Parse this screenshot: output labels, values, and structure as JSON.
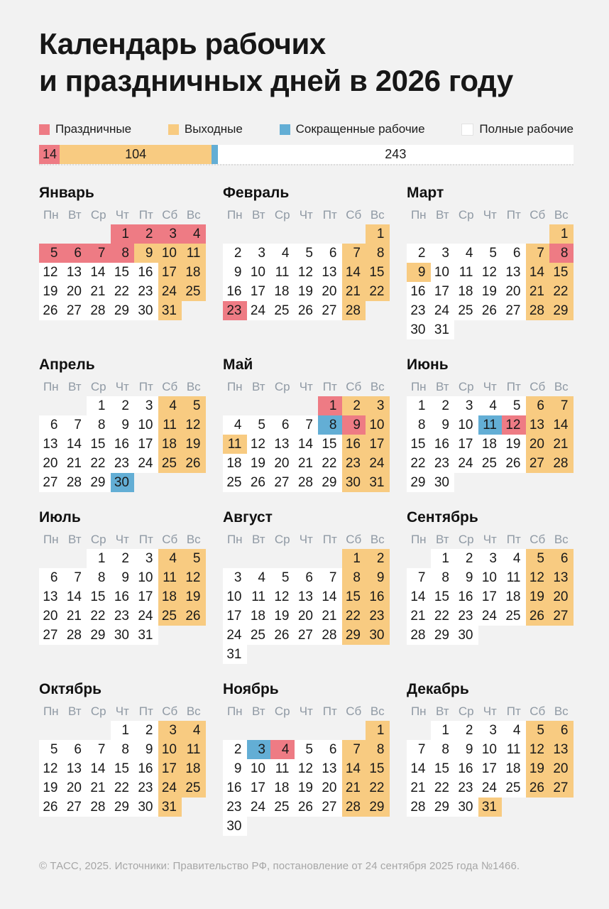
{
  "title": {
    "line1": "Календарь рабочих",
    "line2": "и праздничных дней в 2026 году"
  },
  "legend": {
    "items": [
      {
        "type": "h",
        "label": "Праздничные",
        "color": "#ee7b84"
      },
      {
        "type": "w",
        "label": "Выходные",
        "color": "#f8cb81"
      },
      {
        "type": "s",
        "label": "Сокращенные рабочие",
        "color": "#63aed5"
      },
      {
        "type": "r",
        "label": "Полные рабочие",
        "color": "#ffffff"
      }
    ]
  },
  "chart_data": {
    "type": "bar",
    "title": "Календарь рабочих и праздничных дней в 2026 году",
    "categories": [
      "Праздничные",
      "Выходные",
      "Сокращенные рабочие",
      "Полные рабочие"
    ],
    "values": [
      14,
      104,
      4,
      243
    ],
    "total": 365,
    "colors": [
      "#ee7b84",
      "#f8cb81",
      "#63aed5",
      "#ffffff"
    ],
    "legend_position": "top"
  },
  "weekday_headers": [
    "Пн",
    "Вт",
    "Ср",
    "Чт",
    "Пт",
    "Сб",
    "Вс"
  ],
  "day_type_names": {
    "h": "holiday",
    "w": "dayoff",
    "s": "short-workday",
    "r": "workday",
    "e": "empty"
  },
  "months": [
    {
      "name": "Январь",
      "weeks": [
        [
          "",
          "",
          "",
          "1h",
          "2h",
          "3h",
          "4h"
        ],
        [
          "5h",
          "6h",
          "7h",
          "8h",
          "9w",
          "10w",
          "11w"
        ],
        [
          "12r",
          "13r",
          "14r",
          "15r",
          "16r",
          "17w",
          "18w"
        ],
        [
          "19r",
          "20r",
          "21r",
          "22r",
          "23r",
          "24w",
          "25w"
        ],
        [
          "26r",
          "27r",
          "28r",
          "29r",
          "30r",
          "31w",
          ""
        ]
      ]
    },
    {
      "name": "Февраль",
      "weeks": [
        [
          "",
          "",
          "",
          "",
          "",
          "",
          "1w"
        ],
        [
          "2r",
          "3r",
          "4r",
          "5r",
          "6r",
          "7w",
          "8w"
        ],
        [
          "9r",
          "10r",
          "11r",
          "12r",
          "13r",
          "14w",
          "15w"
        ],
        [
          "16r",
          "17r",
          "18r",
          "19r",
          "20r",
          "21w",
          "22w"
        ],
        [
          "23h",
          "24r",
          "25r",
          "26r",
          "27r",
          "28w",
          ""
        ]
      ]
    },
    {
      "name": "Март",
      "weeks": [
        [
          "",
          "",
          "",
          "",
          "",
          "",
          "1w"
        ],
        [
          "2r",
          "3r",
          "4r",
          "5r",
          "6r",
          "7w",
          "8h"
        ],
        [
          "9w",
          "10r",
          "11r",
          "12r",
          "13r",
          "14w",
          "15w"
        ],
        [
          "16r",
          "17r",
          "18r",
          "19r",
          "20r",
          "21w",
          "22w"
        ],
        [
          "23r",
          "24r",
          "25r",
          "26r",
          "27r",
          "28w",
          "29w"
        ],
        [
          "30r",
          "31r",
          "",
          "",
          "",
          "",
          ""
        ]
      ]
    },
    {
      "name": "Апрель",
      "weeks": [
        [
          "",
          "",
          "1r",
          "2r",
          "3r",
          "4w",
          "5w"
        ],
        [
          "6r",
          "7r",
          "8r",
          "9r",
          "10r",
          "11w",
          "12w"
        ],
        [
          "13r",
          "14r",
          "15r",
          "16r",
          "17r",
          "18w",
          "19w"
        ],
        [
          "20r",
          "21r",
          "22r",
          "23r",
          "24r",
          "25w",
          "26w"
        ],
        [
          "27r",
          "28r",
          "29r",
          "30s",
          "",
          "",
          ""
        ]
      ]
    },
    {
      "name": "Май",
      "weeks": [
        [
          "",
          "",
          "",
          "",
          "1h",
          "2w",
          "3w"
        ],
        [
          "4r",
          "5r",
          "6r",
          "7r",
          "8s",
          "9h",
          "10w"
        ],
        [
          "11w",
          "12r",
          "13r",
          "14r",
          "15r",
          "16w",
          "17w"
        ],
        [
          "18r",
          "19r",
          "20r",
          "21r",
          "22r",
          "23w",
          "24w"
        ],
        [
          "25r",
          "26r",
          "27r",
          "28r",
          "29r",
          "30w",
          "31w"
        ]
      ]
    },
    {
      "name": "Июнь",
      "weeks": [
        [
          "1r",
          "2r",
          "3r",
          "4r",
          "5r",
          "6w",
          "7w"
        ],
        [
          "8r",
          "9r",
          "10r",
          "11s",
          "12h",
          "13w",
          "14w"
        ],
        [
          "15r",
          "16r",
          "17r",
          "18r",
          "19r",
          "20w",
          "21w"
        ],
        [
          "22r",
          "23r",
          "24r",
          "25r",
          "26r",
          "27w",
          "28w"
        ],
        [
          "29r",
          "30r",
          "",
          "",
          "",
          "",
          ""
        ]
      ]
    },
    {
      "name": "Июль",
      "weeks": [
        [
          "",
          "",
          "1r",
          "2r",
          "3r",
          "4w",
          "5w"
        ],
        [
          "6r",
          "7r",
          "8r",
          "9r",
          "10r",
          "11w",
          "12w"
        ],
        [
          "13r",
          "14r",
          "15r",
          "16r",
          "17r",
          "18w",
          "19w"
        ],
        [
          "20r",
          "21r",
          "22r",
          "23r",
          "24r",
          "25w",
          "26w"
        ],
        [
          "27r",
          "28r",
          "29r",
          "30r",
          "31r",
          "",
          ""
        ]
      ]
    },
    {
      "name": "Август",
      "weeks": [
        [
          "",
          "",
          "",
          "",
          "",
          "1w",
          "2w"
        ],
        [
          "3r",
          "4r",
          "5r",
          "6r",
          "7r",
          "8w",
          "9w"
        ],
        [
          "10r",
          "11r",
          "12r",
          "13r",
          "14r",
          "15w",
          "16w"
        ],
        [
          "17r",
          "18r",
          "19r",
          "20r",
          "21r",
          "22w",
          "23w"
        ],
        [
          "24r",
          "25r",
          "26r",
          "27r",
          "28r",
          "29w",
          "30w"
        ],
        [
          "31r",
          "",
          "",
          "",
          "",
          "",
          ""
        ]
      ]
    },
    {
      "name": "Сентябрь",
      "weeks": [
        [
          "",
          "1r",
          "2r",
          "3r",
          "4r",
          "5w",
          "6w"
        ],
        [
          "7r",
          "8r",
          "9r",
          "10r",
          "11r",
          "12w",
          "13w"
        ],
        [
          "14r",
          "15r",
          "16r",
          "17r",
          "18r",
          "19w",
          "20w"
        ],
        [
          "21r",
          "22r",
          "23r",
          "24r",
          "25r",
          "26w",
          "27w"
        ],
        [
          "28r",
          "29r",
          "30r",
          "",
          "",
          "",
          ""
        ]
      ]
    },
    {
      "name": "Октябрь",
      "weeks": [
        [
          "",
          "",
          "",
          "1r",
          "2r",
          "3w",
          "4w"
        ],
        [
          "5r",
          "6r",
          "7r",
          "8r",
          "9r",
          "10w",
          "11w"
        ],
        [
          "12r",
          "13r",
          "14r",
          "15r",
          "16r",
          "17w",
          "18w"
        ],
        [
          "19r",
          "20r",
          "21r",
          "22r",
          "23r",
          "24w",
          "25w"
        ],
        [
          "26r",
          "27r",
          "28r",
          "29r",
          "30r",
          "31w",
          ""
        ]
      ]
    },
    {
      "name": "Ноябрь",
      "weeks": [
        [
          "",
          "",
          "",
          "",
          "",
          "",
          "1w"
        ],
        [
          "2r",
          "3s",
          "4h",
          "5r",
          "6r",
          "7w",
          "8w"
        ],
        [
          "9r",
          "10r",
          "11r",
          "12r",
          "13r",
          "14w",
          "15w"
        ],
        [
          "16r",
          "17r",
          "18r",
          "19r",
          "20r",
          "21w",
          "22w"
        ],
        [
          "23r",
          "24r",
          "25r",
          "26r",
          "27r",
          "28w",
          "29w"
        ],
        [
          "30r",
          "",
          "",
          "",
          "",
          "",
          ""
        ]
      ]
    },
    {
      "name": "Декабрь",
      "weeks": [
        [
          "",
          "1r",
          "2r",
          "3r",
          "4r",
          "5w",
          "6w"
        ],
        [
          "7r",
          "8r",
          "9r",
          "10r",
          "11r",
          "12w",
          "13w"
        ],
        [
          "14r",
          "15r",
          "16r",
          "17r",
          "18r",
          "19w",
          "20w"
        ],
        [
          "21r",
          "22r",
          "23r",
          "24r",
          "25r",
          "26w",
          "27w"
        ],
        [
          "28r",
          "29r",
          "30r",
          "31w",
          "",
          "",
          ""
        ]
      ]
    }
  ],
  "footer": {
    "text": "© ТАСС, 2025. Источники: Правительство РФ, постановление от 24 сентября 2025 года №1466."
  }
}
